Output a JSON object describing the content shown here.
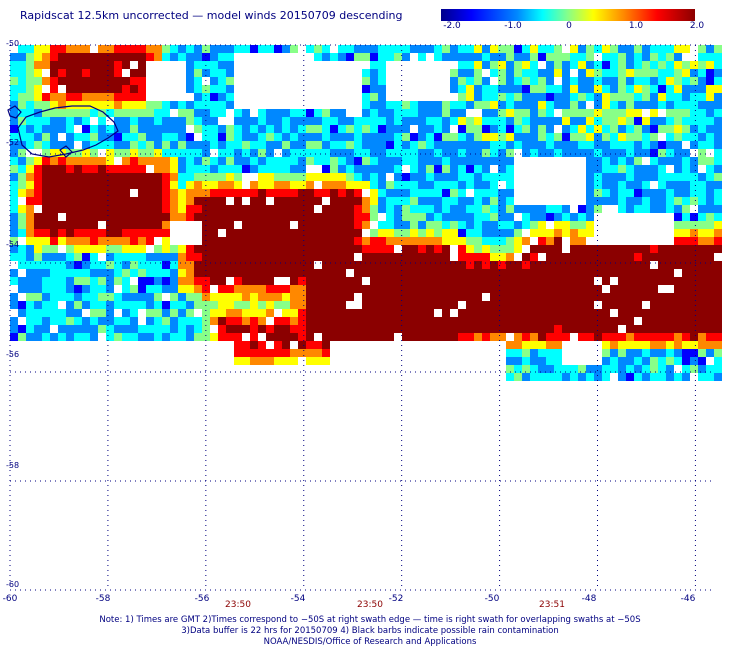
{
  "title": "Rapidscat 12.5km uncorrected — model winds 20150709 descending",
  "colorbar": {
    "ticks": [
      "-2.0",
      "-1.0",
      "0",
      "1.0",
      "2.0"
    ],
    "tick_values": [
      -2.0,
      -1.0,
      0,
      1.0,
      2.0
    ],
    "colors": [
      "#00008b",
      "#0000ff",
      "#0088ff",
      "#00ffff",
      "#88ff88",
      "#ffff00",
      "#ff8800",
      "#ff0000",
      "#8b0000"
    ]
  },
  "latitude_labels": [
    "-50",
    "-52",
    "-54",
    "-56",
    "-58",
    "-60"
  ],
  "latitude_values": [
    -50,
    -52,
    -54,
    -56,
    -58,
    -60
  ],
  "longitude_labels": [
    "-60",
    "-58",
    "-56",
    "-54",
    "-52",
    "-50",
    "-48",
    "-46"
  ],
  "longitude_values": [
    -60,
    -58,
    -56,
    -54,
    -52,
    -50,
    -48,
    -46
  ],
  "times": [
    {
      "label": "23:50",
      "lon": -55.3
    },
    {
      "label": "23:50",
      "lon": -52.6
    },
    {
      "label": "23:51",
      "lon": -48.9
    }
  ],
  "notes": [
    "Note: 1) Times are GMT 2)Times correspond to −50S at right swath edge — time is right swath for overlapping swaths at −50S",
    "3)Data buffer is 22 hrs for 20150709 4) Black barbs indicate possible rain contamination",
    "NOAA/NESDIS/Office of Research and Applications"
  ],
  "colors": {
    "text": "#000080",
    "time": "#8b0000",
    "land": "#000080",
    "grid": "#000080"
  }
}
